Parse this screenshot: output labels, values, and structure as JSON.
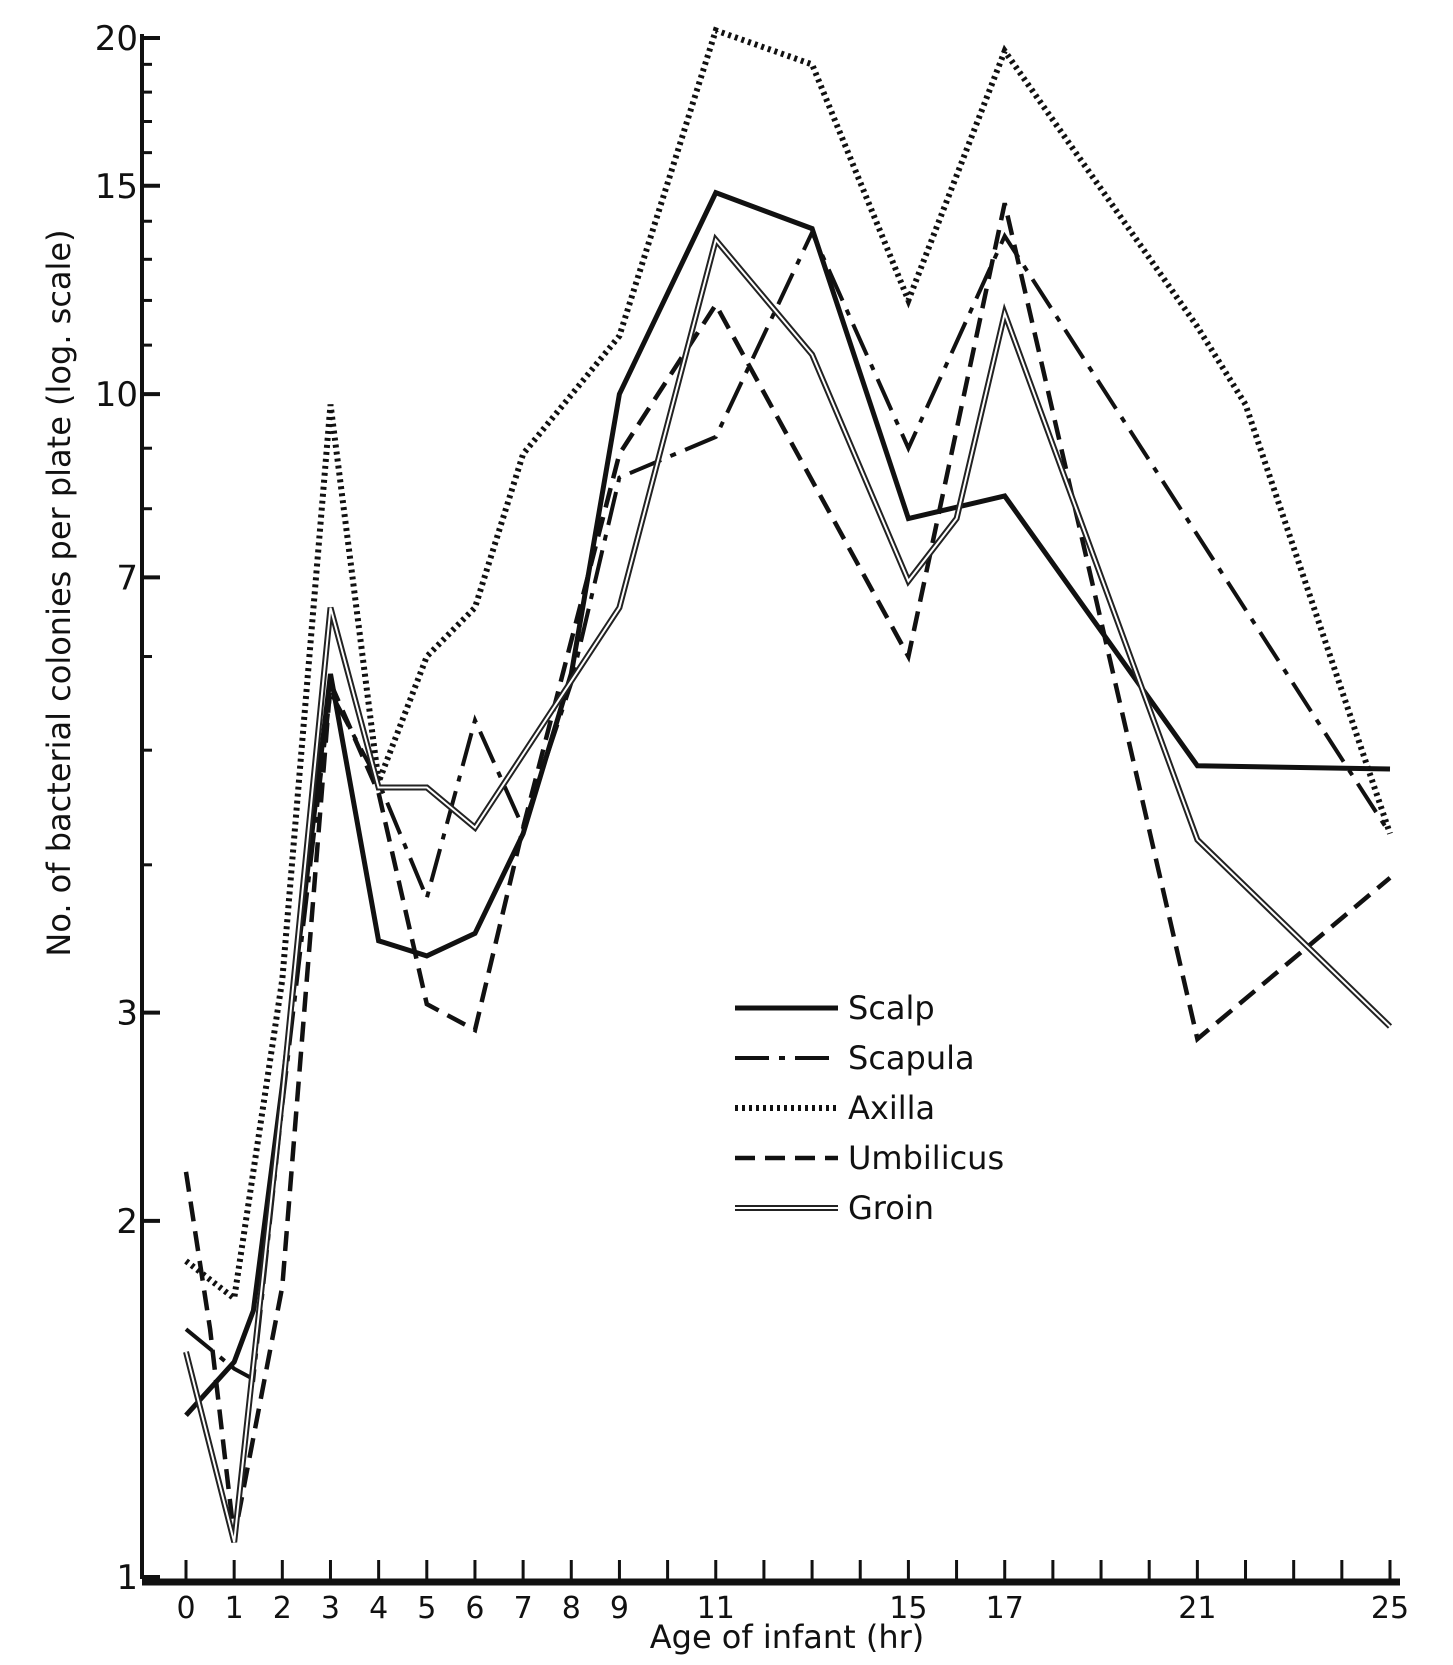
{
  "chart_data": {
    "type": "line",
    "xlabel": "Age of infant (hr)",
    "ylabel": "No. of bacterial colonies per plate (log. scale)",
    "yscale": "log",
    "ylim": [
      1,
      20
    ],
    "xlim": [
      0,
      25
    ],
    "x_ticks": [
      0,
      1,
      2,
      3,
      4,
      5,
      6,
      7,
      8,
      9,
      10,
      11,
      12,
      13,
      14,
      15,
      16,
      17,
      18,
      19,
      20,
      21,
      22,
      23,
      24,
      25
    ],
    "x_tick_labels": [
      {
        "value": 0,
        "label": "0"
      },
      {
        "value": 1,
        "label": "1"
      },
      {
        "value": 2,
        "label": "2"
      },
      {
        "value": 3,
        "label": "3"
      },
      {
        "value": 4,
        "label": "4"
      },
      {
        "value": 5,
        "label": "5"
      },
      {
        "value": 6,
        "label": "6"
      },
      {
        "value": 7,
        "label": "7"
      },
      {
        "value": 8,
        "label": "8"
      },
      {
        "value": 9,
        "label": "9"
      },
      {
        "value": 11,
        "label": "11"
      },
      {
        "value": 15,
        "label": "15"
      },
      {
        "value": 17,
        "label": "17"
      },
      {
        "value": 21,
        "label": "21"
      },
      {
        "value": 25,
        "label": "25"
      }
    ],
    "y_tick_labels": [
      {
        "value": 1,
        "label": "1"
      },
      {
        "value": 2,
        "label": "2"
      },
      {
        "value": 3,
        "label": "3"
      },
      {
        "value": 7,
        "label": "7"
      },
      {
        "value": 10,
        "label": "10"
      },
      {
        "value": 15,
        "label": "15"
      },
      {
        "value": 20,
        "label": "20"
      }
    ],
    "y_minor_ticks": [
      4,
      5,
      6,
      8,
      9,
      11,
      12,
      13,
      14,
      16,
      17,
      18,
      19
    ],
    "legend_position": "center-right",
    "series": [
      {
        "name": "Scalp",
        "style": "solid-thick",
        "points": [
          [
            0,
            1.37
          ],
          [
            1,
            1.52
          ],
          [
            1.4,
            1.68
          ],
          [
            2,
            2.6
          ],
          [
            3,
            5.8
          ],
          [
            4,
            3.45
          ],
          [
            5,
            3.35
          ],
          [
            6,
            3.5
          ],
          [
            7,
            4.25
          ],
          [
            8,
            5.8
          ],
          [
            9,
            10.0
          ],
          [
            11,
            14.8
          ],
          [
            13,
            13.8
          ],
          [
            15,
            7.85
          ],
          [
            17,
            8.2
          ],
          [
            21,
            4.85
          ],
          [
            25,
            4.82
          ]
        ]
      },
      {
        "name": "Scapula",
        "style": "dash-dot",
        "points": [
          [
            0,
            1.62
          ],
          [
            1,
            1.5
          ],
          [
            1.4,
            1.47
          ],
          [
            2,
            2.5
          ],
          [
            3,
            5.6
          ],
          [
            4,
            4.7
          ],
          [
            5,
            3.75
          ],
          [
            6,
            5.3
          ],
          [
            7,
            4.3
          ],
          [
            8,
            5.7
          ],
          [
            9,
            8.5
          ],
          [
            11,
            9.2
          ],
          [
            13,
            13.7
          ],
          [
            15,
            9.0
          ],
          [
            17,
            13.6
          ],
          [
            25,
            4.25
          ]
        ]
      },
      {
        "name": "Axilla",
        "style": "dotted",
        "points": [
          [
            0,
            1.85
          ],
          [
            1,
            1.72
          ],
          [
            2,
            3.2
          ],
          [
            3,
            9.8
          ],
          [
            4,
            4.7
          ],
          [
            5,
            6.0
          ],
          [
            6,
            6.6
          ],
          [
            7,
            8.9
          ],
          [
            9,
            11.2
          ],
          [
            11,
            20.3
          ],
          [
            13,
            19.0
          ],
          [
            15,
            12.0
          ],
          [
            17,
            19.5
          ],
          [
            21,
            11.4
          ],
          [
            22,
            9.8
          ],
          [
            25,
            4.25
          ]
        ]
      },
      {
        "name": "Umbilicus",
        "style": "dashed",
        "points": [
          [
            0,
            2.2
          ],
          [
            0.5,
            1.62
          ],
          [
            1,
            1.08
          ],
          [
            2,
            1.76
          ],
          [
            3,
            5.7
          ],
          [
            4,
            4.6
          ],
          [
            5,
            3.05
          ],
          [
            6,
            2.9
          ],
          [
            7,
            4.3
          ],
          [
            9,
            8.9
          ],
          [
            11,
            11.9
          ],
          [
            15,
            6.0
          ],
          [
            17,
            14.5
          ],
          [
            21,
            2.85
          ],
          [
            25,
            3.9
          ]
        ]
      },
      {
        "name": "Groin",
        "style": "double",
        "points": [
          [
            0,
            1.55
          ],
          [
            1,
            1.07
          ],
          [
            2,
            2.55
          ],
          [
            3,
            6.6
          ],
          [
            4,
            4.65
          ],
          [
            5,
            4.65
          ],
          [
            6,
            4.3
          ],
          [
            9,
            6.6
          ],
          [
            11,
            13.5
          ],
          [
            13,
            10.8
          ],
          [
            15,
            6.95
          ],
          [
            16,
            7.85
          ],
          [
            17,
            11.7
          ],
          [
            21,
            4.2
          ],
          [
            25,
            2.92
          ]
        ]
      }
    ]
  }
}
